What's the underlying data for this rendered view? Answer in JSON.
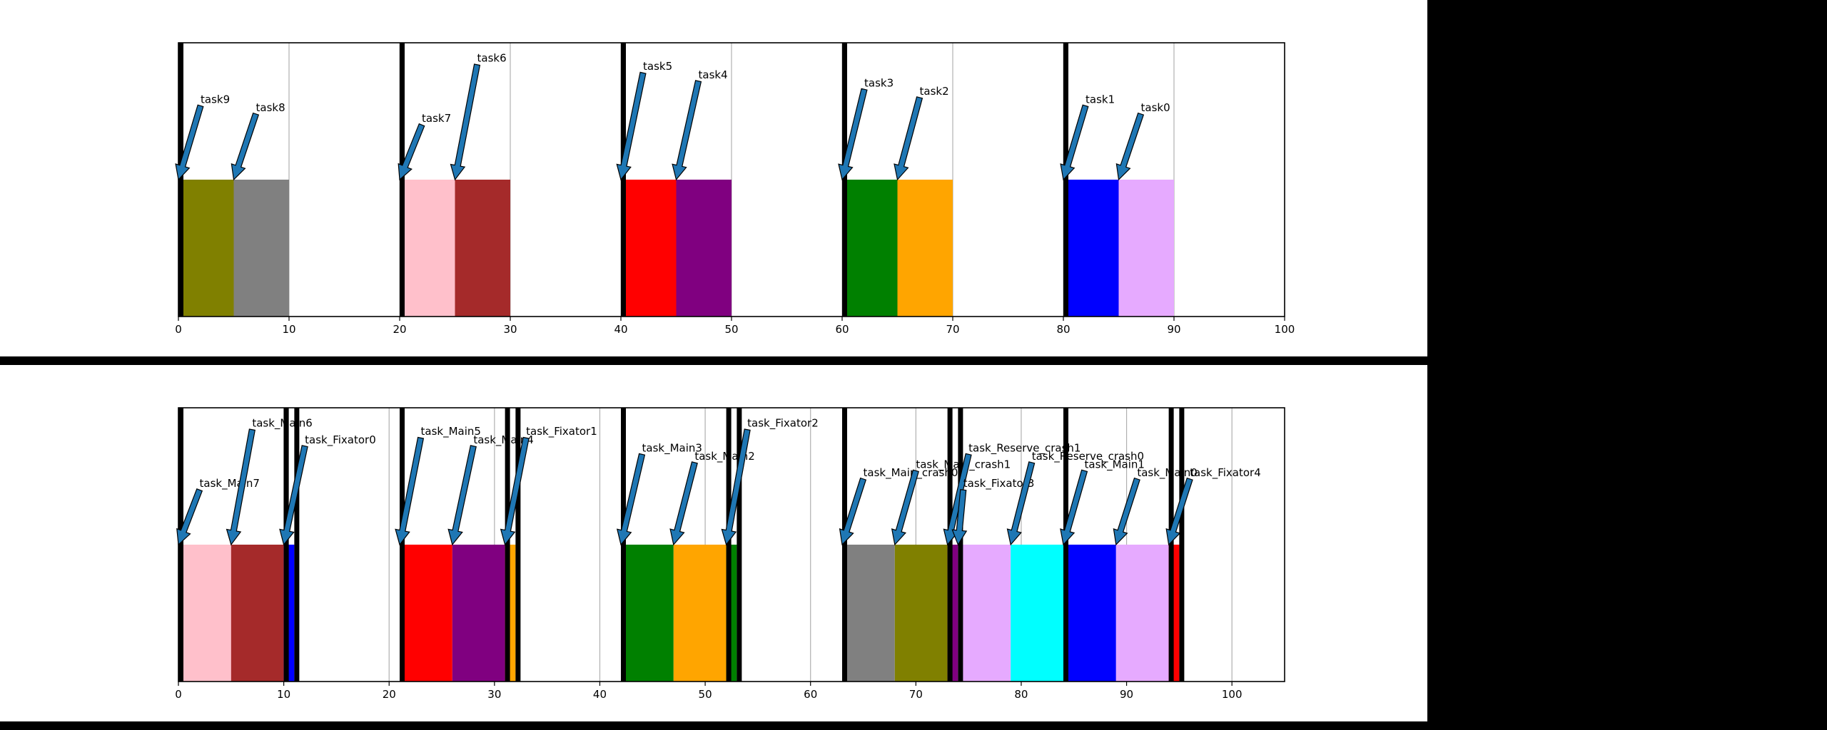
{
  "colors": {
    "background": "#ffffff",
    "separator": "#000000",
    "marker": "#000000",
    "arrow_fill": "#1f77b4",
    "arrow_edge": "#000000",
    "grid": "#b0b0b0"
  },
  "chart_data": [
    {
      "type": "bar",
      "xlim": [
        0,
        100
      ],
      "ylim": [
        0,
        1
      ],
      "grid": "x",
      "xticks": [
        0,
        10,
        20,
        30,
        40,
        50,
        60,
        70,
        80,
        90,
        100
      ],
      "markers": [
        0,
        20,
        40,
        60,
        80
      ],
      "bars": [
        {
          "start": 0,
          "end": 5,
          "color": "#808000"
        },
        {
          "start": 5,
          "end": 10,
          "color": "#808080"
        },
        {
          "start": 20,
          "end": 25,
          "color": "#ffc0cb"
        },
        {
          "start": 25,
          "end": 30,
          "color": "#a52a2a"
        },
        {
          "start": 40,
          "end": 45,
          "color": "#ff0000"
        },
        {
          "start": 45,
          "end": 50,
          "color": "#800080"
        },
        {
          "start": 60,
          "end": 65,
          "color": "#008000"
        },
        {
          "start": 65,
          "end": 70,
          "color": "#ffa500"
        },
        {
          "start": 80,
          "end": 85,
          "color": "#0000ff"
        },
        {
          "start": 85,
          "end": 90,
          "color": "#e6aaff"
        }
      ],
      "annotations": [
        {
          "label": "task9",
          "x": 0,
          "y": 0.5,
          "text_x": 2,
          "text_y": 0.77
        },
        {
          "label": "task8",
          "x": 5,
          "y": 0.5,
          "text_x": 7,
          "text_y": 0.74
        },
        {
          "label": "task7",
          "x": 20,
          "y": 0.5,
          "text_x": 22,
          "text_y": 0.7
        },
        {
          "label": "task6",
          "x": 25,
          "y": 0.5,
          "text_x": 27,
          "text_y": 0.92
        },
        {
          "label": "task5",
          "x": 40,
          "y": 0.5,
          "text_x": 42,
          "text_y": 0.89
        },
        {
          "label": "task4",
          "x": 45,
          "y": 0.5,
          "text_x": 47,
          "text_y": 0.86
        },
        {
          "label": "task3",
          "x": 60,
          "y": 0.5,
          "text_x": 62,
          "text_y": 0.83
        },
        {
          "label": "task2",
          "x": 65,
          "y": 0.5,
          "text_x": 67,
          "text_y": 0.8
        },
        {
          "label": "task1",
          "x": 80,
          "y": 0.5,
          "text_x": 82,
          "text_y": 0.77
        },
        {
          "label": "task0",
          "x": 85,
          "y": 0.5,
          "text_x": 87,
          "text_y": 0.74
        }
      ]
    },
    {
      "type": "bar",
      "xlim": [
        0,
        105
      ],
      "ylim": [
        0,
        1
      ],
      "grid": "x",
      "xticks": [
        0,
        10,
        20,
        30,
        40,
        50,
        60,
        70,
        80,
        90,
        100
      ],
      "markers": [
        0,
        10,
        11,
        21,
        31,
        32,
        42,
        52,
        53,
        63,
        73,
        74,
        84,
        94,
        95
      ],
      "bars": [
        {
          "start": 0,
          "end": 5,
          "color": "#ffc0cb"
        },
        {
          "start": 5,
          "end": 10,
          "color": "#a52a2a"
        },
        {
          "start": 10,
          "end": 11,
          "color": "#0000ff"
        },
        {
          "start": 21,
          "end": 26,
          "color": "#ff0000"
        },
        {
          "start": 26,
          "end": 31,
          "color": "#800080"
        },
        {
          "start": 31,
          "end": 32,
          "color": "#ffa500"
        },
        {
          "start": 42,
          "end": 47,
          "color": "#008000"
        },
        {
          "start": 47,
          "end": 52,
          "color": "#ffa500"
        },
        {
          "start": 52,
          "end": 53,
          "color": "#008000"
        },
        {
          "start": 63,
          "end": 68,
          "color": "#808080"
        },
        {
          "start": 68,
          "end": 73,
          "color": "#808000"
        },
        {
          "start": 73,
          "end": 74,
          "color": "#800080"
        },
        {
          "start": 74,
          "end": 79,
          "color": "#e6aaff"
        },
        {
          "start": 79,
          "end": 84,
          "color": "#00ffff"
        },
        {
          "start": 84,
          "end": 89,
          "color": "#0000ff"
        },
        {
          "start": 89,
          "end": 94,
          "color": "#e6aaff"
        },
        {
          "start": 94,
          "end": 95,
          "color": "#ff0000"
        }
      ],
      "annotations": [
        {
          "label": "task_Main7",
          "x": 0,
          "y": 0.5,
          "text_x": 2,
          "text_y": 0.7
        },
        {
          "label": "task_Main6",
          "x": 5,
          "y": 0.5,
          "text_x": 7,
          "text_y": 0.92
        },
        {
          "label": "task_Fixator0",
          "x": 10,
          "y": 0.5,
          "text_x": 12,
          "text_y": 0.86
        },
        {
          "label": "task_Main5",
          "x": 21,
          "y": 0.5,
          "text_x": 23,
          "text_y": 0.89
        },
        {
          "label": "task_Main4",
          "x": 26,
          "y": 0.5,
          "text_x": 28,
          "text_y": 0.86
        },
        {
          "label": "task_Fixator1",
          "x": 31,
          "y": 0.5,
          "text_x": 33,
          "text_y": 0.89
        },
        {
          "label": "task_Main3",
          "x": 42,
          "y": 0.5,
          "text_x": 44,
          "text_y": 0.83
        },
        {
          "label": "task_Main2",
          "x": 47,
          "y": 0.5,
          "text_x": 49,
          "text_y": 0.8
        },
        {
          "label": "task_Fixator2",
          "x": 52,
          "y": 0.5,
          "text_x": 54,
          "text_y": 0.92
        },
        {
          "label": "task_Main_crash0",
          "x": 63,
          "y": 0.5,
          "text_x": 65,
          "text_y": 0.74
        },
        {
          "label": "task_Main_crash1",
          "x": 68,
          "y": 0.5,
          "text_x": 70,
          "text_y": 0.77
        },
        {
          "label": "task_Reserve_crash1",
          "x": 73,
          "y": 0.5,
          "text_x": 75,
          "text_y": 0.83
        },
        {
          "label": "task_Fixator3",
          "x": 74,
          "y": 0.5,
          "text_x": 74.5,
          "text_y": 0.7
        },
        {
          "label": "task_Reserve_crash0",
          "x": 79,
          "y": 0.5,
          "text_x": 81,
          "text_y": 0.8
        },
        {
          "label": "task_Main1",
          "x": 84,
          "y": 0.5,
          "text_x": 86,
          "text_y": 0.77
        },
        {
          "label": "task_Main0",
          "x": 89,
          "y": 0.5,
          "text_x": 91,
          "text_y": 0.74
        },
        {
          "label": "task_Fixator4",
          "x": 94,
          "y": 0.5,
          "text_x": 96,
          "text_y": 0.74
        }
      ]
    }
  ]
}
